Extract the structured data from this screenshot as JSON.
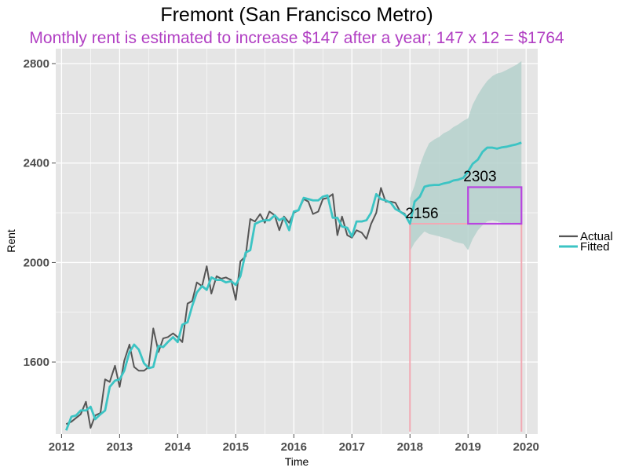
{
  "chart_data": {
    "type": "line",
    "title": "Fremont (San Francisco Metro)",
    "subtitle": "Monthly rent is estimated to increase $147 after a year; 147 x 12 = $1764",
    "xlabel": "Time",
    "ylabel": "Rent",
    "xlim": [
      2011.9,
      2020.2
    ],
    "ylim": [
      1310,
      2860
    ],
    "x_ticks": [
      2012,
      2013,
      2014,
      2015,
      2016,
      2017,
      2018,
      2019,
      2020
    ],
    "y_ticks": [
      1600,
      2000,
      2400,
      2800
    ],
    "grid": true,
    "legend": {
      "placement": "right",
      "entries": [
        "Actual",
        "Fitted"
      ]
    },
    "colors": {
      "actual": "#555555",
      "fitted": "#3cc4c4",
      "forecast_band": "#b5d1cc",
      "reference_lines": "#f2a9b4",
      "box": "#b844e0",
      "panel": "#e5e5e5",
      "grid": "#ffffff",
      "subtitle": "#b13fc3"
    },
    "series": [
      {
        "name": "Actual",
        "x": [
          2012.08,
          2012.17,
          2012.25,
          2012.33,
          2012.42,
          2012.5,
          2012.58,
          2012.67,
          2012.75,
          2012.83,
          2012.92,
          2013.0,
          2013.08,
          2013.17,
          2013.25,
          2013.33,
          2013.42,
          2013.5,
          2013.58,
          2013.67,
          2013.75,
          2013.83,
          2013.92,
          2014.0,
          2014.08,
          2014.17,
          2014.25,
          2014.33,
          2014.42,
          2014.5,
          2014.58,
          2014.67,
          2014.75,
          2014.83,
          2014.92,
          2015.0,
          2015.08,
          2015.17,
          2015.25,
          2015.33,
          2015.42,
          2015.5,
          2015.58,
          2015.67,
          2015.75,
          2015.83,
          2015.92,
          2016.0,
          2016.08,
          2016.17,
          2016.25,
          2016.33,
          2016.42,
          2016.5,
          2016.58,
          2016.67,
          2016.75,
          2016.83,
          2016.92,
          2017.0,
          2017.08,
          2017.17,
          2017.25,
          2017.33,
          2017.42,
          2017.5,
          2017.58,
          2017.67,
          2017.75,
          2017.83,
          2017.92
        ],
        "values": [
          1350,
          1360,
          1375,
          1390,
          1440,
          1335,
          1385,
          1395,
          1530,
          1520,
          1585,
          1500,
          1605,
          1670,
          1580,
          1565,
          1565,
          1580,
          1735,
          1640,
          1695,
          1700,
          1715,
          1700,
          1680,
          1835,
          1845,
          1920,
          1905,
          1985,
          1875,
          1945,
          1935,
          1940,
          1930,
          1850,
          2005,
          2025,
          2175,
          2165,
          2195,
          2160,
          2205,
          2190,
          2130,
          2185,
          2160,
          2200,
          2210,
          2255,
          2245,
          2195,
          2205,
          2255,
          2260,
          2275,
          2110,
          2185,
          2110,
          2100,
          2130,
          2120,
          2095,
          2155,
          2200,
          2300,
          2245,
          2245,
          2240,
          2205,
          2195
        ]
      },
      {
        "name": "Fitted",
        "x": [
          2012.08,
          2012.17,
          2012.25,
          2012.33,
          2012.42,
          2012.5,
          2012.58,
          2012.67,
          2012.75,
          2012.83,
          2012.92,
          2013.0,
          2013.08,
          2013.17,
          2013.25,
          2013.33,
          2013.42,
          2013.5,
          2013.58,
          2013.67,
          2013.75,
          2013.83,
          2013.92,
          2014.0,
          2014.08,
          2014.17,
          2014.25,
          2014.33,
          2014.42,
          2014.5,
          2014.58,
          2014.67,
          2014.75,
          2014.83,
          2014.92,
          2015.0,
          2015.08,
          2015.17,
          2015.25,
          2015.33,
          2015.42,
          2015.5,
          2015.58,
          2015.67,
          2015.75,
          2015.83,
          2015.92,
          2016.0,
          2016.08,
          2016.17,
          2016.25,
          2016.33,
          2016.42,
          2016.5,
          2016.58,
          2016.67,
          2016.75,
          2016.83,
          2016.92,
          2017.0,
          2017.08,
          2017.17,
          2017.25,
          2017.33,
          2017.42,
          2017.5,
          2017.58,
          2017.67,
          2017.75,
          2017.83,
          2017.92,
          2018.0,
          2018.08,
          2018.17,
          2018.25,
          2018.33,
          2018.42,
          2018.5,
          2018.58,
          2018.67,
          2018.75,
          2018.83,
          2018.92,
          2019.0,
          2019.08,
          2019.17,
          2019.25,
          2019.33,
          2019.42,
          2019.5,
          2019.58,
          2019.67,
          2019.75,
          2019.83,
          2019.92
        ],
        "values": [
          1325,
          1380,
          1385,
          1405,
          1405,
          1420,
          1370,
          1390,
          1405,
          1500,
          1525,
          1530,
          1565,
          1640,
          1670,
          1650,
          1595,
          1575,
          1580,
          1665,
          1660,
          1680,
          1700,
          1680,
          1750,
          1760,
          1825,
          1880,
          1905,
          1890,
          1940,
          1930,
          1930,
          1920,
          1925,
          1910,
          1945,
          2040,
          2050,
          2155,
          2165,
          2170,
          2170,
          2190,
          2170,
          2180,
          2130,
          2205,
          2210,
          2260,
          2255,
          2250,
          2250,
          2265,
          2270,
          2180,
          2180,
          2145,
          2140,
          2105,
          2165,
          2165,
          2170,
          2200,
          2275,
          2255,
          2250,
          2240,
          2215,
          2205,
          2190,
          2156,
          2245,
          2265,
          2305,
          2310,
          2312,
          2312,
          2318,
          2322,
          2330,
          2333,
          2341,
          2366,
          2397,
          2414,
          2445,
          2462,
          2462,
          2458,
          2463,
          2466,
          2471,
          2475,
          2482
        ]
      }
    ],
    "forecast_band": {
      "x": [
        2018.0,
        2018.08,
        2018.17,
        2018.25,
        2018.33,
        2018.42,
        2018.5,
        2018.58,
        2018.67,
        2018.75,
        2018.83,
        2018.92,
        2019.0,
        2019.08,
        2019.17,
        2019.25,
        2019.33,
        2019.42,
        2019.5,
        2019.58,
        2019.67,
        2019.75,
        2019.83,
        2019.92
      ],
      "upper": [
        2260,
        2310,
        2390,
        2440,
        2480,
        2495,
        2505,
        2520,
        2530,
        2545,
        2555,
        2570,
        2580,
        2635,
        2675,
        2705,
        2730,
        2750,
        2760,
        2765,
        2775,
        2785,
        2795,
        2810
      ],
      "lower": [
        2045,
        2080,
        2105,
        2125,
        2115,
        2110,
        2105,
        2100,
        2095,
        2085,
        2080,
        2075,
        2050,
        2095,
        2130,
        2150,
        2165,
        2170,
        2165,
        2160,
        2155,
        2160,
        2155,
        2150
      ]
    },
    "annotations": [
      {
        "text": "2156",
        "x": 2017.92,
        "y": 2178
      },
      {
        "text": "2303",
        "x": 2018.92,
        "y": 2327
      }
    ],
    "reference_lines": {
      "vertical_x": [
        2018.0,
        2019.92
      ],
      "y_bottom": 1320,
      "horizontal_y": 2156,
      "x_start": 2018.0,
      "x_end": 2019.92
    },
    "highlight_box": {
      "x0": 2019.0,
      "x1": 2019.92,
      "y0": 2156,
      "y1": 2303
    }
  }
}
